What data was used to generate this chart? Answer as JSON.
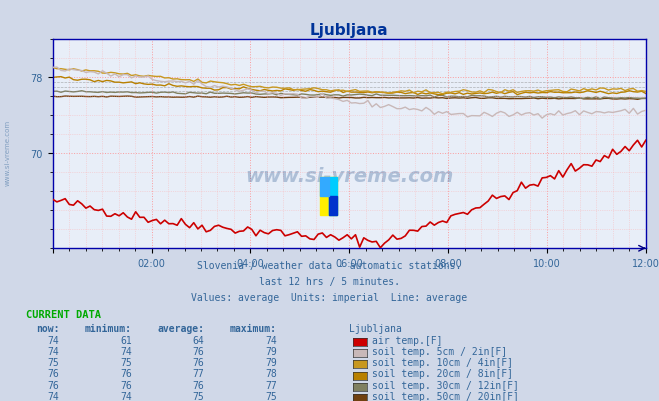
{
  "title": "Ljubljana",
  "bg_color": "#d0d8e8",
  "plot_bg_color": "#e8eef8",
  "grid_color_major": "#ff9999",
  "grid_color_minor": "#ddddff",
  "xlabel_times": [
    "02:00",
    "04:00",
    "06:00",
    "08:00",
    "10:00",
    "12:00"
  ],
  "ylim": [
    60,
    82
  ],
  "yticks": [
    70,
    78
  ],
  "subtitle1": "Slovenia / weather data - automatic stations.",
  "subtitle2": "last 12 hrs / 5 minutes.",
  "subtitle3": "Values: average  Units: imperial  Line: average",
  "watermark": "www.si-vreme.com",
  "current_data_label": "CURRENT DATA",
  "table_headers": [
    "now:",
    "minimum:",
    "average:",
    "maximum:",
    "Ljubljana"
  ],
  "table_data": [
    [
      74,
      61,
      64,
      74,
      "#cc0000",
      "air temp.[F]"
    ],
    [
      74,
      74,
      76,
      79,
      "#c8b8b8",
      "soil temp. 5cm / 2in[F]"
    ],
    [
      75,
      75,
      76,
      79,
      "#c89820",
      "soil temp. 10cm / 4in[F]"
    ],
    [
      76,
      76,
      77,
      78,
      "#b88000",
      "soil temp. 20cm / 8in[F]"
    ],
    [
      76,
      76,
      76,
      77,
      "#808060",
      "soil temp. 30cm / 12in[F]"
    ],
    [
      74,
      74,
      75,
      75,
      "#704010",
      "soil temp. 50cm / 20in[F]"
    ]
  ],
  "line_colors": [
    "#cc0000",
    "#c8b8b8",
    "#c89820",
    "#b88000",
    "#808060",
    "#704010"
  ],
  "line_widths": [
    1.2,
    1.2,
    1.2,
    1.2,
    1.2,
    1.2
  ],
  "text_color": "#336699",
  "text_color_dark": "#003366"
}
